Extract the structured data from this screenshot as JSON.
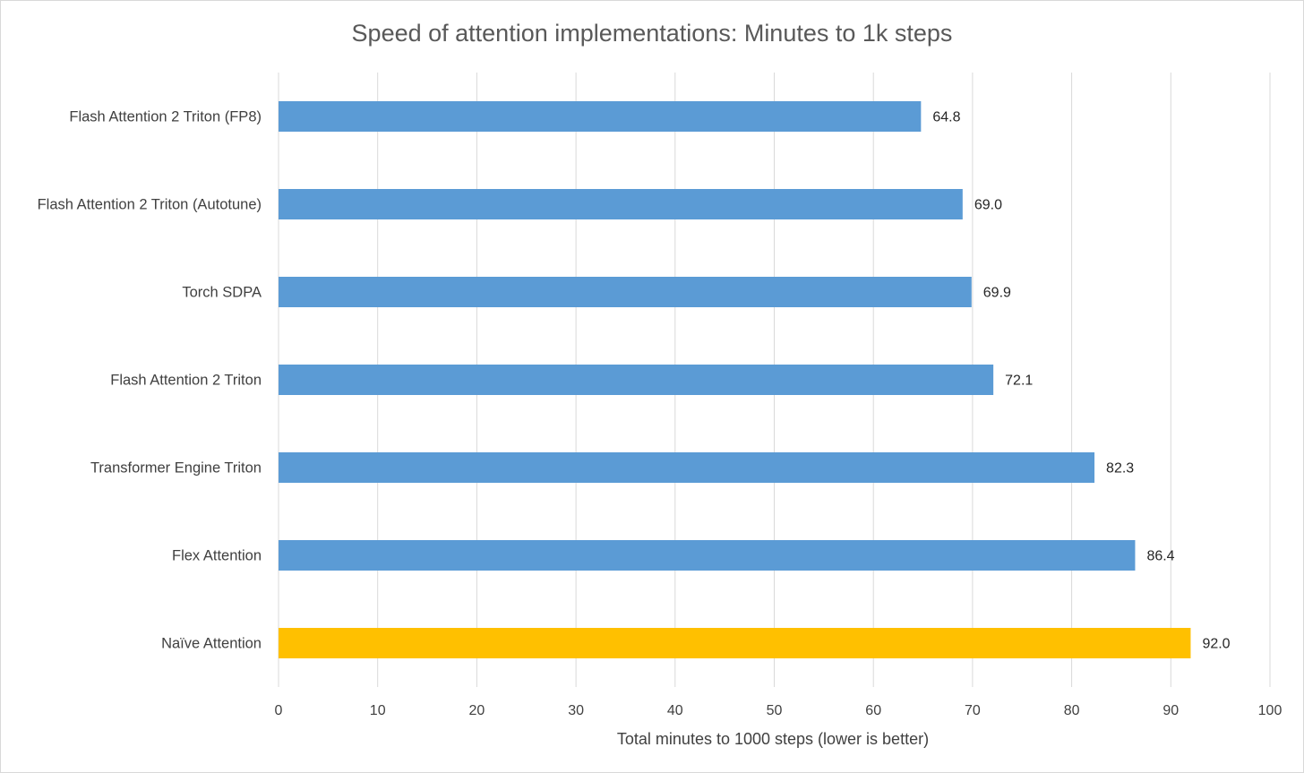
{
  "chart_data": {
    "type": "bar",
    "orientation": "horizontal",
    "title": "Speed of attention implementations: Minutes to 1k steps",
    "xlabel": "Total minutes to 1000 steps (lower is better)",
    "ylabel": "",
    "xlim": [
      0,
      100
    ],
    "x_ticks": [
      "0",
      "10",
      "20",
      "30",
      "40",
      "50",
      "60",
      "70",
      "80",
      "90",
      "100"
    ],
    "grid": true,
    "legend": "none",
    "categories": [
      "Flash Attention 2 Triton (FP8)",
      "Flash Attention 2 Triton (Autotune)",
      "Torch SDPA",
      "Flash Attention 2 Triton",
      "Transformer Engine Triton",
      "Flex Attention",
      "Naïve Attention"
    ],
    "values": [
      64.8,
      69.0,
      69.9,
      72.1,
      82.3,
      86.4,
      92.0
    ],
    "data_labels": [
      "64.8",
      "69.0",
      "69.9",
      "72.1",
      "82.3",
      "86.4",
      "92.0"
    ],
    "colors": [
      "#5b9bd5",
      "#5b9bd5",
      "#5b9bd5",
      "#5b9bd5",
      "#5b9bd5",
      "#5b9bd5",
      "#ffc000"
    ]
  }
}
